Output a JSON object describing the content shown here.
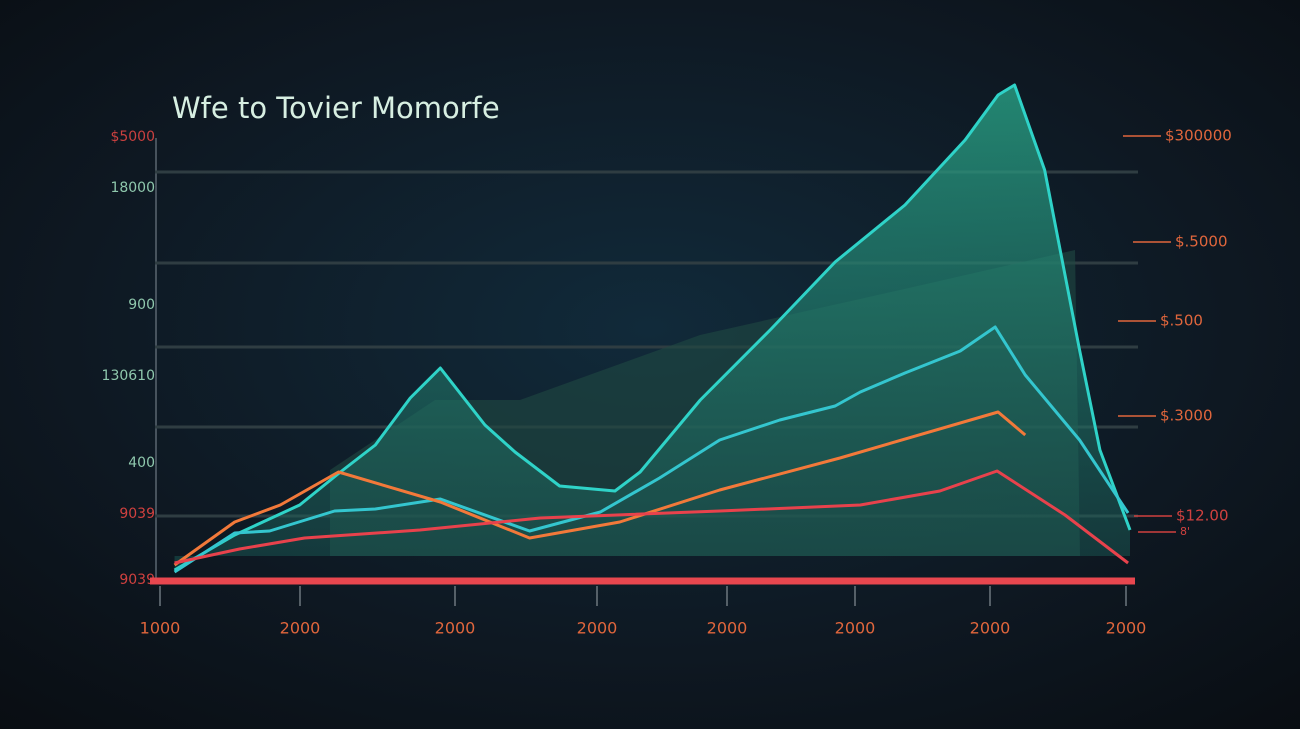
{
  "chart_data": {
    "type": "line",
    "title": "Wfe to Tovier Momorfe",
    "left_labels": [
      "$5000",
      "18000",
      "900",
      "130610",
      "400",
      "9039",
      "9039"
    ],
    "right_labels": [
      "$300000",
      "$.5000",
      "$.500",
      "$.3000",
      "$12.00",
      "8'"
    ],
    "x_labels": [
      "1000",
      "2000",
      "2000",
      "2000",
      "2000",
      "2000",
      "2000",
      "2000"
    ],
    "xlim": [
      0,
      100
    ],
    "ylim": [
      0,
      100
    ],
    "series": [
      {
        "color": "#2fd3c8",
        "area": true,
        "x": [
          1.5,
          7.7,
          14.4,
          18.6,
          22.2,
          25.8,
          28.9,
          33.5,
          36.6,
          41.2,
          46.9,
          49.5,
          55.7,
          62.9,
          69.6,
          76.8,
          83,
          86.4,
          88.1,
          91.2,
          93.3,
          94.8,
          96.9,
          100
        ],
        "values": [
          2.2,
          9.2,
          15.2,
          21.8,
          27.2,
          36.6,
          42.6,
          31.2,
          25.8,
          19,
          18,
          21.8,
          36.2,
          50.2,
          63.8,
          75.2,
          88.2,
          97.2,
          99.2,
          82.2,
          61.2,
          46.2,
          26.2,
          10.2
        ]
      },
      {
        "color": "#34c6cf",
        "area": false,
        "x": [
          1.5,
          7.7,
          11.3,
          18.0,
          22.2,
          28.9,
          38.1,
          45.4,
          51.5,
          57.7,
          63.9,
          69.6,
          72.2,
          76.8,
          82.5,
          86.1,
          89.2,
          94.8,
          99.8
        ],
        "values": [
          1.8,
          9.6,
          10,
          14,
          14.4,
          16.4,
          10,
          13.8,
          20.6,
          28.2,
          32.2,
          35,
          37.8,
          41.6,
          46,
          50.8,
          41.2,
          28.2,
          13.6
        ]
      },
      {
        "color": "#f2793a",
        "area": false,
        "x": [
          1.5,
          7.7,
          12.4,
          18.4,
          28.9,
          38.1,
          47.4,
          57.7,
          70.1,
          86.4,
          89.2
        ],
        "values": [
          3.2,
          11.8,
          15.2,
          21.8,
          15.8,
          8.6,
          11.8,
          18.2,
          24.6,
          33.8,
          29.2
        ]
      },
      {
        "color": "#e8424c",
        "area": false,
        "x": [
          1.5,
          8.2,
          14.9,
          26.8,
          39.2,
          57.7,
          72.2,
          80.4,
          86.3,
          93.3,
          99.8
        ],
        "values": [
          3.6,
          6.4,
          8.6,
          10.2,
          12.6,
          14,
          15.2,
          18,
          22,
          13.2,
          3.6
        ]
      }
    ]
  }
}
